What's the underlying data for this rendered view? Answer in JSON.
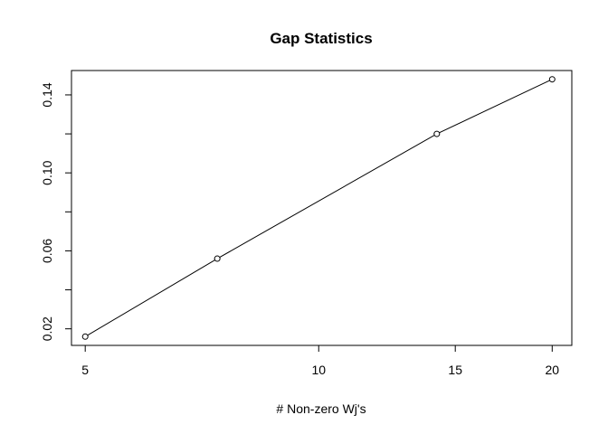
{
  "chart_data": {
    "type": "line",
    "title": "Gap Statistics",
    "xlabel": "# Non-zero Wj's",
    "ylabel": "",
    "x_scale": "log",
    "x": [
      5,
      7.4,
      14.2,
      20
    ],
    "y": [
      0.016,
      0.056,
      0.12,
      0.148
    ],
    "xlim": [
      4.8,
      21.2
    ],
    "ylim": [
      0.0115,
      0.1525
    ],
    "x_ticks": [
      5,
      10,
      15,
      20
    ],
    "x_tick_labels": [
      "5",
      "10",
      "15",
      "20"
    ],
    "y_ticks": [
      0.02,
      0.04,
      0.06,
      0.08,
      0.1,
      0.12,
      0.14
    ],
    "y_tick_labels": [
      "0.02",
      "",
      "0.06",
      "",
      "0.10",
      "",
      "0.14"
    ],
    "marker": "open-circle",
    "grid": false,
    "legend": "none"
  }
}
